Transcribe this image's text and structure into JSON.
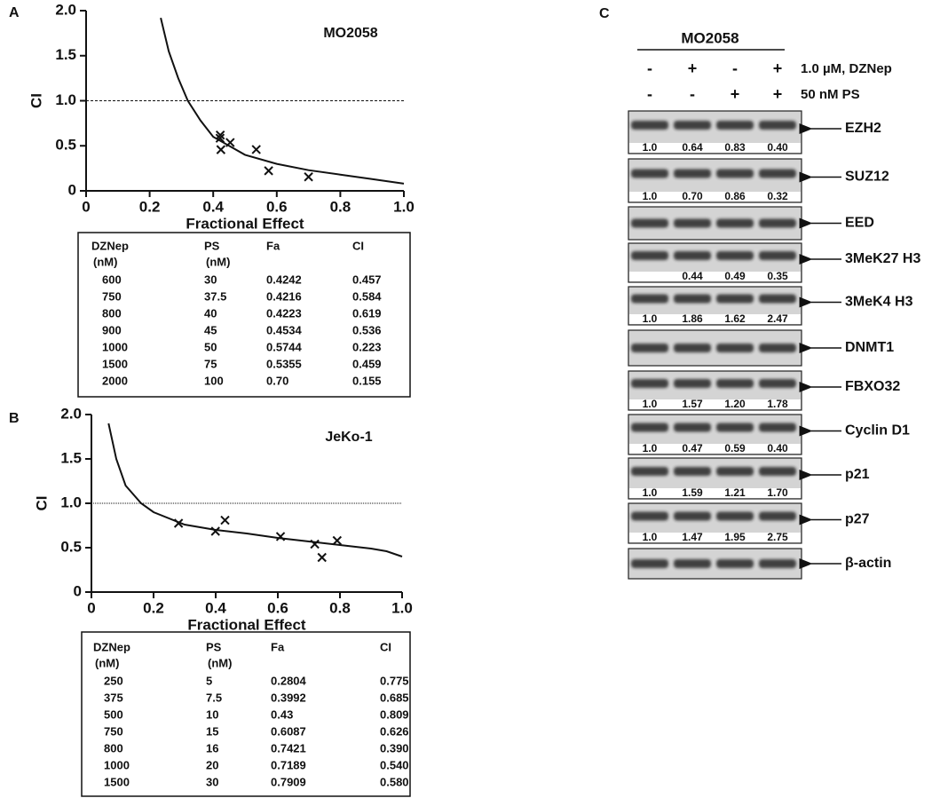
{
  "chart_data": [
    {
      "type": "scatter",
      "panel_label": "A",
      "annotation": "MO2058",
      "xlabel": "Fractional Effect",
      "ylabel": "CI",
      "xlim": [
        0,
        1
      ],
      "ylim": [
        0,
        2
      ],
      "xticks": [
        0,
        0.2,
        0.4,
        0.6,
        0.8,
        {
          "value": 1,
          "label": "1.0"
        }
      ],
      "yticks": [
        0,
        0.5,
        {
          "value": 1,
          "label": "1.0"
        },
        1.5,
        {
          "value": 2,
          "label": "2.0"
        }
      ],
      "reference_line": 1,
      "x": [
        0.4242,
        0.4216,
        0.4223,
        0.4534,
        0.5744,
        0.5355,
        0.7
      ],
      "y": [
        0.457,
        0.584,
        0.619,
        0.536,
        0.223,
        0.459,
        0.155
      ],
      "curve": {
        "x": [
          0.235,
          0.26,
          0.29,
          0.32,
          0.36,
          0.4,
          0.45,
          0.5,
          0.6,
          0.7,
          0.8,
          0.9,
          1.0
        ],
        "y": [
          1.92,
          1.55,
          1.25,
          1.0,
          0.78,
          0.6,
          0.5,
          0.4,
          0.3,
          0.23,
          0.18,
          0.13,
          0.08
        ]
      }
    },
    {
      "type": "scatter",
      "panel_label": "B",
      "annotation": "JeKo-1",
      "xlabel": "Fractional Effect",
      "ylabel": "CI",
      "xlim": [
        0,
        1
      ],
      "ylim": [
        0,
        2
      ],
      "xticks": [
        0,
        0.2,
        0.4,
        0.6,
        0.8,
        {
          "value": 1,
          "label": "1.0"
        }
      ],
      "yticks": [
        0,
        0.5,
        {
          "value": 1,
          "label": "1.0"
        },
        1.5,
        {
          "value": 2,
          "label": "2.0"
        }
      ],
      "reference_line": 1,
      "x": [
        0.2804,
        0.3992,
        0.43,
        0.6087,
        0.7421,
        0.7189,
        0.7909
      ],
      "y": [
        0.775,
        0.685,
        0.809,
        0.626,
        0.39,
        0.54,
        0.58
      ],
      "curve": {
        "x": [
          0.055,
          0.08,
          0.11,
          0.16,
          0.2,
          0.3,
          0.4,
          0.5,
          0.6,
          0.7,
          0.8,
          0.9,
          0.95,
          1.0
        ],
        "y": [
          1.9,
          1.5,
          1.2,
          1.0,
          0.9,
          0.76,
          0.7,
          0.66,
          0.61,
          0.57,
          0.53,
          0.49,
          0.46,
          0.4
        ]
      }
    }
  ],
  "tables": [
    {
      "header": [
        [
          "DZNep",
          "(nM)"
        ],
        [
          "PS",
          "(nM)"
        ],
        [
          "Fa"
        ],
        [
          "CI"
        ]
      ],
      "rows": [
        [
          "600",
          "30",
          "0.4242",
          "0.457"
        ],
        [
          "750",
          "37.5",
          "0.4216",
          "0.584"
        ],
        [
          "800",
          "40",
          "0.4223",
          "0.619"
        ],
        [
          "900",
          "45",
          "0.4534",
          "0.536"
        ],
        [
          "1000",
          "50",
          "0.5744",
          "0.223"
        ],
        [
          "1500",
          "75",
          "0.5355",
          "0.459"
        ],
        [
          "2000",
          "100",
          "0.70",
          "0.155"
        ]
      ]
    },
    {
      "header": [
        [
          "DZNep",
          "(nM)"
        ],
        [
          "PS",
          "(nM)"
        ],
        [
          "Fa"
        ],
        [
          "CI"
        ]
      ],
      "rows": [
        [
          "250",
          "5",
          "0.2804",
          "0.775"
        ],
        [
          "375",
          "7.5",
          "0.3992",
          "0.685"
        ],
        [
          "500",
          "10",
          "0.43",
          "0.809"
        ],
        [
          "750",
          "15",
          "0.6087",
          "0.626"
        ],
        [
          "800",
          "16",
          "0.7421",
          "0.390"
        ],
        [
          "1000",
          "20",
          "0.7189",
          "0.540"
        ],
        [
          "1500",
          "30",
          "0.7909",
          "0.580"
        ]
      ]
    }
  ],
  "blot": {
    "panel_label": "C",
    "cell_line": "MO2058",
    "treatments": [
      {
        "label": "1.0 µM, DZNep",
        "signs": [
          "-",
          "+",
          "-",
          "+"
        ]
      },
      {
        "label": "50 nM PS",
        "signs": [
          "-",
          "-",
          "+",
          "+"
        ]
      }
    ],
    "bands": [
      {
        "label": "EZH2",
        "quant": [
          "1.0",
          "0.64",
          "0.83",
          "0.40"
        ]
      },
      {
        "label": "SUZ12",
        "quant": [
          "1.0",
          "0.70",
          "0.86",
          "0.32"
        ]
      },
      {
        "label": "EED"
      },
      {
        "label": "3MeK27 H3",
        "quant": [
          "",
          "0.44",
          "0.49",
          "0.35"
        ]
      },
      {
        "label": "3MeK4 H3",
        "quant": [
          "1.0",
          "1.86",
          "1.62",
          "2.47"
        ]
      },
      {
        "label": "DNMT1"
      },
      {
        "label": "FBXO32",
        "quant": [
          "1.0",
          "1.57",
          "1.20",
          "1.78"
        ]
      },
      {
        "label": "Cyclin D1",
        "quant": [
          "1.0",
          "0.47",
          "0.59",
          "0.40"
        ]
      },
      {
        "label": "p21",
        "quant": [
          "1.0",
          "1.59",
          "1.21",
          "1.70"
        ]
      },
      {
        "label": "p27",
        "quant": [
          "1.0",
          "1.47",
          "1.95",
          "2.75"
        ]
      },
      {
        "label": "β-actin"
      }
    ]
  }
}
